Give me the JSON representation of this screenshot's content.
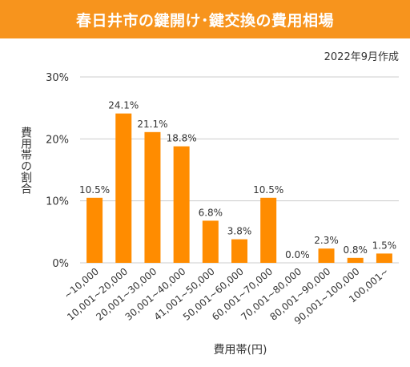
{
  "header": {
    "title": "春日井市の鍵開け･鍵交換の費用相場"
  },
  "note": "2022年9月作成",
  "colors": {
    "banner": "#f7941d",
    "bar": "#ff8c00",
    "grid": "#cccccc"
  },
  "chart_data": {
    "type": "bar",
    "categories": [
      "~10,000",
      "10,001~20,000",
      "20,001~30,000",
      "30,001~40,000",
      "41,001~50,000",
      "50,001~60,000",
      "60,001~70,000",
      "70,001~80,000",
      "80,001~90,000",
      "90,001~100,000",
      "100,001~"
    ],
    "values": [
      10.5,
      24.1,
      21.1,
      18.8,
      6.8,
      3.8,
      10.5,
      0.0,
      2.3,
      0.8,
      1.5
    ],
    "data_labels": [
      "10.5%",
      "24.1%",
      "21.1%",
      "18.8%",
      "6.8%",
      "3.8%",
      "10.5%",
      "0.0%",
      "2.3%",
      "0.8%",
      "1.5%"
    ],
    "xlabel": "費用帯(円)",
    "ylabel": "費用帯の割合",
    "ylim": [
      0,
      30
    ],
    "yticks": [
      0,
      10,
      20,
      30
    ],
    "ytick_labels": [
      "0%",
      "10%",
      "20%",
      "30%"
    ],
    "grid": true,
    "legend": "none"
  }
}
